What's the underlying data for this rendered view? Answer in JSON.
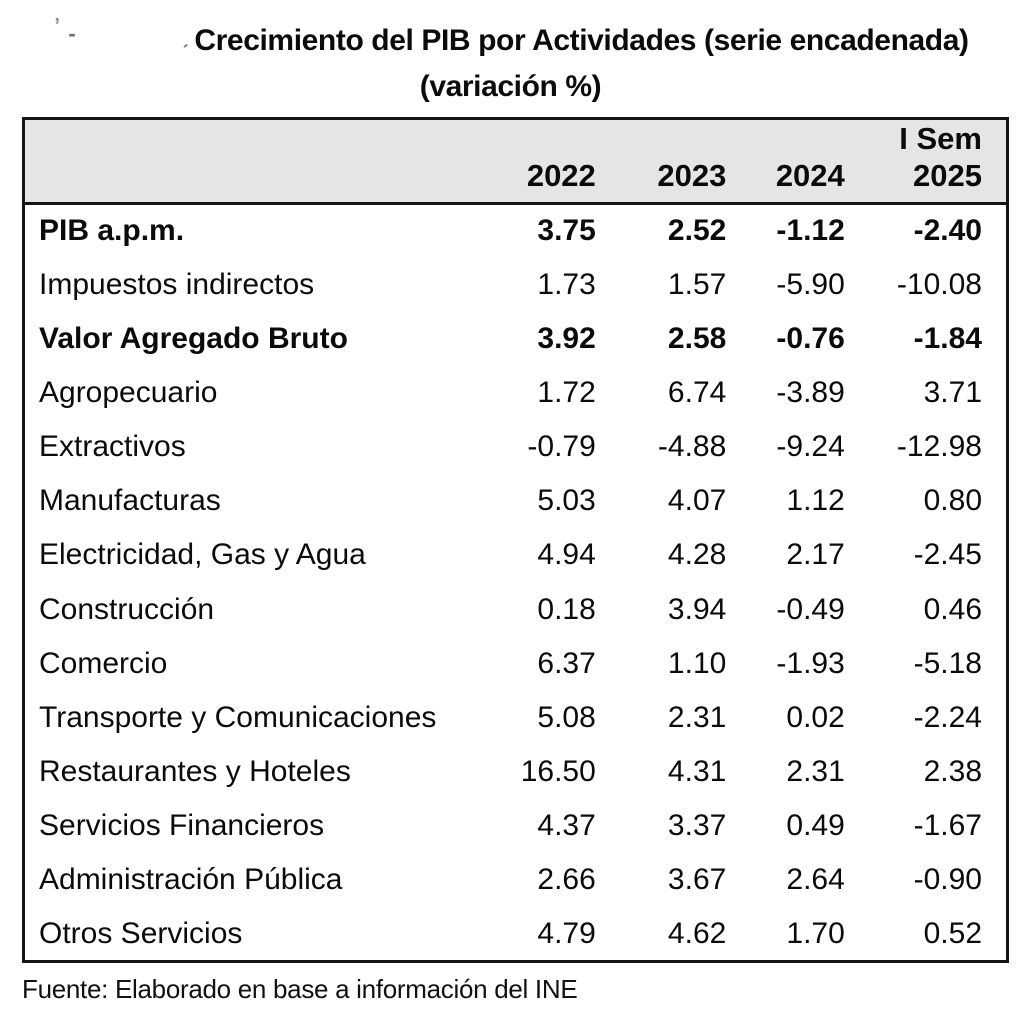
{
  "title": {
    "line1": "Crecimiento del PIB por Actividades (serie encadenada)",
    "line2": "(variación %)",
    "erased_marks": [
      "’",
      "‐",
      "ˏ"
    ]
  },
  "table": {
    "header": {
      "label_col": "",
      "years": [
        "2022",
        "2023",
        "2024"
      ],
      "sem_line1": "I Sem",
      "sem_line2": "2025"
    },
    "rows": [
      {
        "label": "PIB a.p.m.",
        "bold": true,
        "values": [
          "3.75",
          "2.52",
          "-1.12",
          "-2.40"
        ]
      },
      {
        "label": "Impuestos indirectos",
        "bold": false,
        "values": [
          "1.73",
          "1.57",
          "-5.90",
          "-10.08"
        ]
      },
      {
        "label": "Valor Agregado Bruto",
        "bold": true,
        "values": [
          "3.92",
          "2.58",
          "-0.76",
          "-1.84"
        ]
      },
      {
        "label": "Agropecuario",
        "bold": false,
        "values": [
          "1.72",
          "6.74",
          "-3.89",
          "3.71"
        ]
      },
      {
        "label": "Extractivos",
        "bold": false,
        "values": [
          "-0.79",
          "-4.88",
          "-9.24",
          "-12.98"
        ]
      },
      {
        "label": "Manufacturas",
        "bold": false,
        "values": [
          "5.03",
          "4.07",
          "1.12",
          "0.80"
        ]
      },
      {
        "label": "Electricidad, Gas y Agua",
        "bold": false,
        "values": [
          "4.94",
          "4.28",
          "2.17",
          "-2.45"
        ]
      },
      {
        "label": "Construcción",
        "bold": false,
        "values": [
          "0.18",
          "3.94",
          "-0.49",
          "0.46"
        ]
      },
      {
        "label": "Comercio",
        "bold": false,
        "values": [
          "6.37",
          "1.10",
          "-1.93",
          "-5.18"
        ]
      },
      {
        "label": "Transporte y Comunicaciones",
        "bold": false,
        "values": [
          "5.08",
          "2.31",
          "0.02",
          "-2.24"
        ]
      },
      {
        "label": "Restaurantes y Hoteles",
        "bold": false,
        "values": [
          "16.50",
          "4.31",
          "2.31",
          "2.38"
        ]
      },
      {
        "label": "Servicios Financieros",
        "bold": false,
        "values": [
          "4.37",
          "3.37",
          "0.49",
          "-1.67"
        ]
      },
      {
        "label": "Administración Pública",
        "bold": false,
        "values": [
          "2.66",
          "3.67",
          "2.64",
          "-0.90"
        ]
      },
      {
        "label": "Otros Servicios",
        "bold": false,
        "values": [
          "4.79",
          "4.62",
          "1.70",
          "0.52"
        ]
      }
    ]
  },
  "footer": {
    "source": "Fuente: Elaborado en base a información del INE"
  },
  "colors": {
    "header_bg": "#e5e5e5",
    "border": "#151515",
    "text": "#0b0b0b"
  },
  "chart_data": {
    "type": "table",
    "title": "Crecimiento del PIB por Actividades (serie encadenada) (variación %)",
    "categories": [
      "2022",
      "2023",
      "2024",
      "I Sem 2025"
    ],
    "series": [
      {
        "name": "PIB a.p.m.",
        "values": [
          3.75,
          2.52,
          -1.12,
          -2.4
        ]
      },
      {
        "name": "Impuestos indirectos",
        "values": [
          1.73,
          1.57,
          -5.9,
          -10.08
        ]
      },
      {
        "name": "Valor Agregado Bruto",
        "values": [
          3.92,
          2.58,
          -0.76,
          -1.84
        ]
      },
      {
        "name": "Agropecuario",
        "values": [
          1.72,
          6.74,
          -3.89,
          3.71
        ]
      },
      {
        "name": "Extractivos",
        "values": [
          -0.79,
          -4.88,
          -9.24,
          -12.98
        ]
      },
      {
        "name": "Manufacturas",
        "values": [
          5.03,
          4.07,
          1.12,
          0.8
        ]
      },
      {
        "name": "Electricidad, Gas y Agua",
        "values": [
          4.94,
          4.28,
          2.17,
          -2.45
        ]
      },
      {
        "name": "Construcción",
        "values": [
          0.18,
          3.94,
          -0.49,
          0.46
        ]
      },
      {
        "name": "Comercio",
        "values": [
          6.37,
          1.1,
          -1.93,
          -5.18
        ]
      },
      {
        "name": "Transporte y Comunicaciones",
        "values": [
          5.08,
          2.31,
          0.02,
          -2.24
        ]
      },
      {
        "name": "Restaurantes y Hoteles",
        "values": [
          16.5,
          4.31,
          2.31,
          2.38
        ]
      },
      {
        "name": "Servicios Financieros",
        "values": [
          4.37,
          3.37,
          0.49,
          -1.67
        ]
      },
      {
        "name": "Administración Pública",
        "values": [
          2.66,
          3.67,
          2.64,
          -0.9
        ]
      },
      {
        "name": "Otros Servicios",
        "values": [
          4.79,
          4.62,
          1.7,
          0.52
        ]
      }
    ],
    "units": "variación %",
    "source": "Fuente: Elaborado en base a información del INE"
  }
}
